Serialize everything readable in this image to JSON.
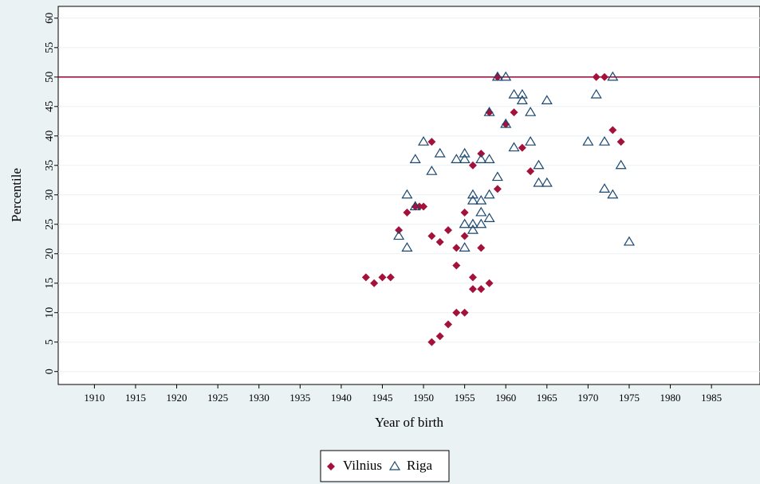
{
  "chart_data": {
    "type": "scatter",
    "x_label": "Year of birth",
    "y_label": "Percentile",
    "xlim": [
      1905.6,
      1990.9
    ],
    "ylim": [
      -2.2,
      62
    ],
    "xticks": [
      1910,
      1915,
      1920,
      1925,
      1930,
      1935,
      1940,
      1945,
      1950,
      1955,
      1960,
      1965,
      1970,
      1975,
      1980,
      1985
    ],
    "yticks": [
      0,
      5,
      10,
      15,
      20,
      25,
      30,
      35,
      40,
      45,
      50,
      55,
      60
    ],
    "grid": true,
    "hline": 50,
    "hline_color": "#990033",
    "legend": "bottom",
    "series": [
      {
        "name": "Vilnius",
        "color": "#a3123a",
        "marker": "diamond",
        "x": [
          1943,
          1944,
          1945,
          1946,
          1947,
          1948,
          1949,
          1949.5,
          1950,
          1951,
          1951,
          1951,
          1952,
          1952,
          1953,
          1953,
          1954,
          1954,
          1954,
          1955,
          1955,
          1955,
          1956,
          1956,
          1956,
          1957,
          1957,
          1957,
          1958,
          1958,
          1959,
          1959,
          1960,
          1961,
          1962,
          1963,
          1971,
          1972,
          1973,
          1974
        ],
        "values": [
          16,
          15,
          16,
          16,
          24,
          27,
          28,
          28,
          28,
          39,
          23,
          5,
          22,
          6,
          24,
          8,
          21,
          18,
          10,
          10,
          27,
          23,
          35,
          16,
          14,
          37,
          21,
          14,
          44,
          15,
          50,
          31,
          42,
          44,
          38,
          34,
          50,
          50,
          41,
          39
        ]
      },
      {
        "name": "Riga",
        "color": "#1a476f",
        "marker": "triangle",
        "x": [
          1947,
          1948,
          1948,
          1949,
          1949,
          1950,
          1951,
          1952,
          1954,
          1955,
          1955,
          1955,
          1955,
          1956,
          1956,
          1956,
          1956,
          1957,
          1957,
          1957,
          1957,
          1958,
          1958,
          1958,
          1958,
          1959,
          1959,
          1960,
          1960,
          1961,
          1961,
          1962,
          1962,
          1963,
          1963,
          1964,
          1964,
          1965,
          1965,
          1970,
          1971,
          1972,
          1972,
          1973,
          1973,
          1974,
          1975
        ],
        "values": [
          23,
          30,
          21,
          36,
          28,
          39,
          34,
          37,
          36,
          36,
          37,
          25,
          21,
          30,
          29,
          25,
          24,
          29,
          27,
          25,
          36,
          36,
          30,
          26,
          44,
          33,
          50,
          50,
          42,
          47,
          38,
          47,
          46,
          44,
          39,
          35,
          32,
          32,
          46,
          39,
          47,
          39,
          31,
          50,
          30,
          35,
          22
        ]
      }
    ]
  }
}
